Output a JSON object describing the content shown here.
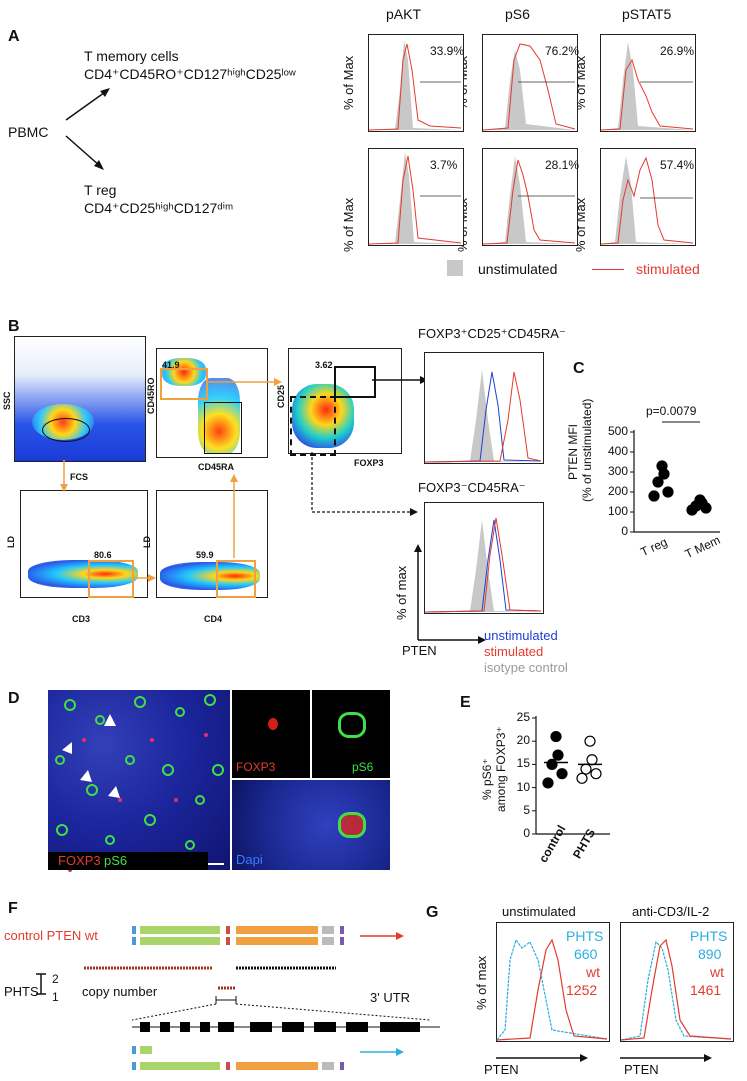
{
  "panelA": {
    "letter": "A",
    "pbmc": "PBMC",
    "tmem_title": "T memory cells",
    "tmem_marker": "CD4⁺CD45RO⁺CD127ʰⁱᵍʰCD25ˡᵒʷ",
    "treg_title": "T reg",
    "treg_marker": "CD4⁺CD25ʰⁱᵍʰCD127ᵈⁱᵐ",
    "cols": [
      "pAKT",
      "pS6",
      "pSTAT5"
    ],
    "ylabel": "% of Max",
    "row1": [
      "33.9%",
      "76.2%",
      "26.9%"
    ],
    "row2": [
      "3.7%",
      "28.1%",
      "57.4%"
    ],
    "legend_unstim": "unstimulated",
    "legend_stim": "stimulated"
  },
  "panelB": {
    "letter": "B",
    "ssc": "SSC",
    "fcs": "FCS",
    "cd45ro": "CD45RO",
    "cd45ra": "CD45RA",
    "cd25": "CD25",
    "foxp3": "FOXP3",
    "ld": "LD",
    "cd3": "CD3",
    "cd4": "CD4",
    "g1": "41.9",
    "g2": "3.62",
    "g3": "80.6",
    "g4": "59.9",
    "hist1_title": "FOXP3⁺CD25⁺CD45RA⁻",
    "hist2_title": "FOXP3⁻CD45RA⁻",
    "ylabel": "% of max",
    "xlabel": "PTEN",
    "legend": [
      "unstimulated",
      "stimulated",
      "isotype control"
    ]
  },
  "panelC": {
    "letter": "C",
    "pvalue": "p=0.0079",
    "ylabel1": "PTEN MFI",
    "ylabel2": "(% of unstimulated)",
    "yticks": [
      "500",
      "400",
      "300",
      "200",
      "100",
      "0"
    ],
    "groups": [
      "T reg",
      "T Mem"
    ]
  },
  "chart_data": [
    {
      "type": "scatter",
      "ylabel": "PTEN MFI (% of unstimulated)",
      "ylim": [
        0,
        500
      ],
      "categories": [
        "T reg",
        "T Mem"
      ],
      "series": [
        {
          "name": "T reg",
          "values": [
            330,
            290,
            250,
            200,
            180
          ]
        },
        {
          "name": "T Mem",
          "values": [
            160,
            145,
            130,
            120,
            110
          ]
        }
      ]
    },
    {
      "type": "scatter",
      "ylabel": "% pS6⁺ among FOXP3⁺",
      "ylim": [
        0,
        25
      ],
      "categories": [
        "control",
        "PHTS"
      ],
      "series": [
        {
          "name": "control",
          "values": [
            21,
            17,
            15,
            13,
            11
          ]
        },
        {
          "name": "PHTS",
          "values": [
            20,
            16,
            14,
            13,
            12
          ]
        }
      ]
    }
  ],
  "panelD": {
    "letter": "D",
    "foxp3": "FOXP3",
    "ps6": "pS6",
    "dapi": "Dapi"
  },
  "panelE": {
    "letter": "E",
    "ylabel1": "% pS6⁺",
    "ylabel2": "among FOXP3⁺",
    "yticks": [
      "25",
      "20",
      "15",
      "10",
      "5",
      "0"
    ],
    "groups": [
      "control",
      "PHTS"
    ]
  },
  "panelF": {
    "letter": "F",
    "control": "control PTEN wt",
    "phts": "PHTS",
    "copy_number": "copy number",
    "two": "2",
    "one": "1",
    "utr": "3' UTR"
  },
  "panelG": {
    "letter": "G",
    "title1": "unstimulated",
    "title2": "anti-CD3/IL-2",
    "ylabel": "% of max",
    "xlabel": "PTEN",
    "phts": "PHTS",
    "wt": "wt",
    "phts1": "660",
    "wt1": "1252",
    "phts2": "890",
    "wt2": "1461"
  },
  "colors": {
    "stim": "#e33b2e",
    "unstim_fill": "#c8c8c8",
    "blue": "#1f3fd3",
    "orange": "#f0a040",
    "cyan": "#2ab0e0"
  }
}
